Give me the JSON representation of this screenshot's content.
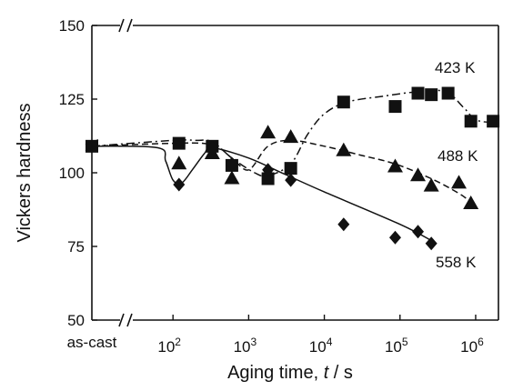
{
  "chart_data": {
    "type": "scatter",
    "title": "",
    "xlabel": "Aging time, t / s",
    "xlabel_parts": {
      "prefix": "Aging time, ",
      "var": "t",
      "suffix": " / s"
    },
    "ylabel": "Vickers hardness",
    "x_scale": "log",
    "x_axis_break": true,
    "y_axis_break": true,
    "ylim": [
      50,
      150
    ],
    "xlim_log": [
      10,
      2000000
    ],
    "y_ticks": [
      50,
      75,
      100,
      125,
      150
    ],
    "x_ticks": [
      {
        "label": "as-cast",
        "value": null
      },
      {
        "label": "10",
        "exp": "2",
        "value": 100
      },
      {
        "label": "10",
        "exp": "3",
        "value": 1000
      },
      {
        "label": "10",
        "exp": "4",
        "value": 10000
      },
      {
        "label": "10",
        "exp": "5",
        "value": 100000
      },
      {
        "label": "10",
        "exp": "6",
        "value": 1000000
      }
    ],
    "as_cast_value": 109,
    "grid": false,
    "legend": "inline labels",
    "series": [
      {
        "name": "423 K",
        "marker": "square",
        "line": "dash-dot",
        "points": [
          [
            120,
            110
          ],
          [
            330,
            109
          ],
          [
            600,
            102.5
          ],
          [
            1800,
            98
          ],
          [
            3600,
            101.5
          ],
          [
            18000,
            124
          ],
          [
            86400,
            122.5
          ],
          [
            172800,
            127
          ],
          [
            259200,
            126.5
          ],
          [
            432000,
            127
          ],
          [
            864000,
            117.5
          ],
          [
            1700000,
            117.5
          ]
        ],
        "curve": [
          [
            100,
            111
          ],
          [
            200,
            111
          ],
          [
            330,
            110.5
          ],
          [
            600,
            105
          ],
          [
            1200,
            100
          ],
          [
            1800,
            99
          ],
          [
            3600,
            103
          ],
          [
            6000,
            113
          ],
          [
            10000,
            120
          ],
          [
            20000,
            124
          ],
          [
            60000,
            126
          ],
          [
            172800,
            127.5
          ],
          [
            400000,
            127.5
          ],
          [
            700000,
            122
          ],
          [
            1000000,
            118
          ],
          [
            1700000,
            117
          ]
        ]
      },
      {
        "name": "488 K",
        "marker": "triangle",
        "line": "dash",
        "points": [
          [
            120,
            103
          ],
          [
            330,
            106.5
          ],
          [
            600,
            98
          ],
          [
            1800,
            113.5
          ],
          [
            3600,
            112
          ],
          [
            18000,
            107.5
          ],
          [
            86400,
            102
          ],
          [
            172800,
            99
          ],
          [
            259200,
            95.5
          ],
          [
            600000,
            96.5
          ],
          [
            864000,
            89.5
          ]
        ],
        "curve": [
          [
            100,
            110
          ],
          [
            330,
            109.5
          ],
          [
            600,
            105
          ],
          [
            1000,
            101
          ],
          [
            1800,
            109
          ],
          [
            3600,
            111
          ],
          [
            10000,
            109
          ],
          [
            30000,
            106
          ],
          [
            86400,
            103
          ],
          [
            259200,
            98
          ],
          [
            600000,
            93
          ],
          [
            864000,
            90
          ]
        ]
      },
      {
        "name": "558 K",
        "marker": "diamond",
        "line": "solid",
        "points": [
          [
            120,
            96
          ],
          [
            330,
            108.5
          ],
          [
            600,
            103
          ],
          [
            1800,
            101
          ],
          [
            3600,
            97.5
          ],
          [
            18000,
            82.5
          ],
          [
            86400,
            78
          ],
          [
            172800,
            80
          ],
          [
            259200,
            76
          ]
        ],
        "curve": [
          [
            63,
            108.5
          ],
          [
            80,
            104
          ],
          [
            100,
            97.5
          ],
          [
            130,
            96.5
          ],
          [
            180,
            101
          ],
          [
            260,
            106.5
          ],
          [
            330,
            108.5
          ],
          [
            1000,
            105
          ],
          [
            3000,
            99.5
          ],
          [
            10000,
            93.5
          ],
          [
            100000,
            82.5
          ],
          [
            259200,
            77
          ]
        ]
      }
    ]
  }
}
